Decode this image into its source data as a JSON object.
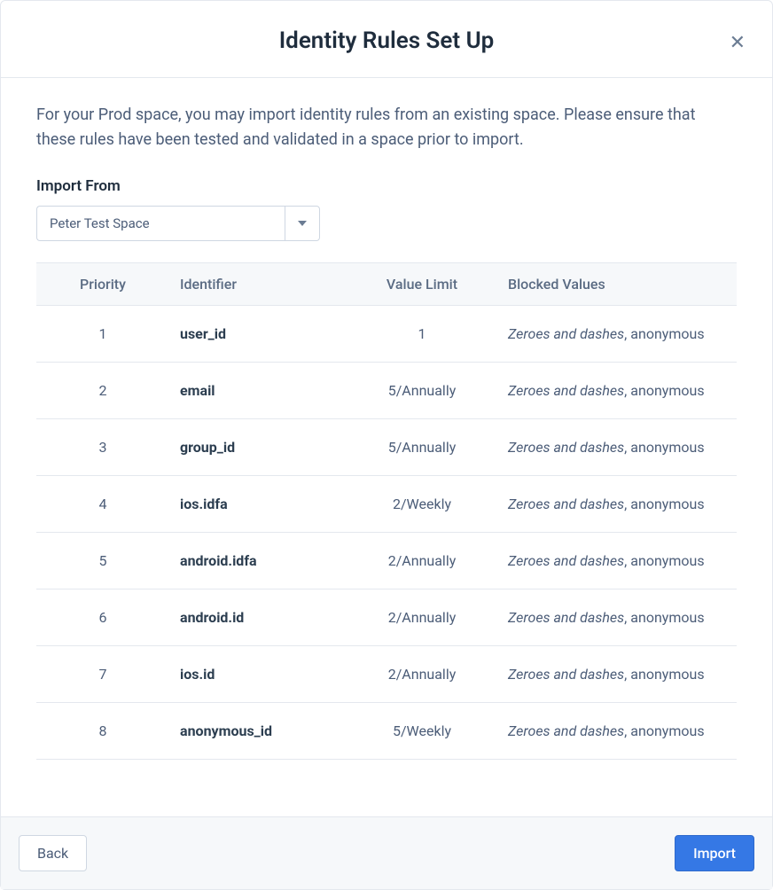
{
  "header": {
    "title": "Identity Rules Set Up"
  },
  "body": {
    "description": "For your Prod space, you may import identity rules from an existing space. Please ensure that these rules have been tested and validated in a space prior to import.",
    "import_label": "Import From",
    "selected_space": "Peter Test Space"
  },
  "table": {
    "columns": {
      "priority": "Priority",
      "identifier": "Identifier",
      "value_limit": "Value Limit",
      "blocked_values": "Blocked Values"
    },
    "rows": [
      {
        "priority": "1",
        "identifier": "user_id",
        "value_limit": "1",
        "blocked_italic": "Zeroes and dashes",
        "blocked_rest": ", anonymous"
      },
      {
        "priority": "2",
        "identifier": "email",
        "value_limit": "5/Annually",
        "blocked_italic": "Zeroes and dashes",
        "blocked_rest": ", anonymous"
      },
      {
        "priority": "3",
        "identifier": "group_id",
        "value_limit": "5/Annually",
        "blocked_italic": "Zeroes and dashes",
        "blocked_rest": ", anonymous"
      },
      {
        "priority": "4",
        "identifier": "ios.idfa",
        "value_limit": "2/Weekly",
        "blocked_italic": "Zeroes and dashes",
        "blocked_rest": ", anonymous"
      },
      {
        "priority": "5",
        "identifier": "android.idfa",
        "value_limit": "2/Annually",
        "blocked_italic": "Zeroes and dashes",
        "blocked_rest": ", anonymous"
      },
      {
        "priority": "6",
        "identifier": "android.id",
        "value_limit": "2/Annually",
        "blocked_italic": "Zeroes and dashes",
        "blocked_rest": ", anonymous"
      },
      {
        "priority": "7",
        "identifier": "ios.id",
        "value_limit": "2/Annually",
        "blocked_italic": "Zeroes and dashes",
        "blocked_rest": ", anonymous"
      },
      {
        "priority": "8",
        "identifier": "anonymous_id",
        "value_limit": "5/Weekly",
        "blocked_italic": "Zeroes and dashes",
        "blocked_rest": ", anonymous"
      }
    ]
  },
  "footer": {
    "back_label": "Back",
    "import_label": "Import"
  },
  "colors": {
    "primary": "#3578e5",
    "border": "#e4e8ee",
    "text": "#4c5d78",
    "heading": "#1f2d3d",
    "footer_bg": "#f6f8fa"
  }
}
